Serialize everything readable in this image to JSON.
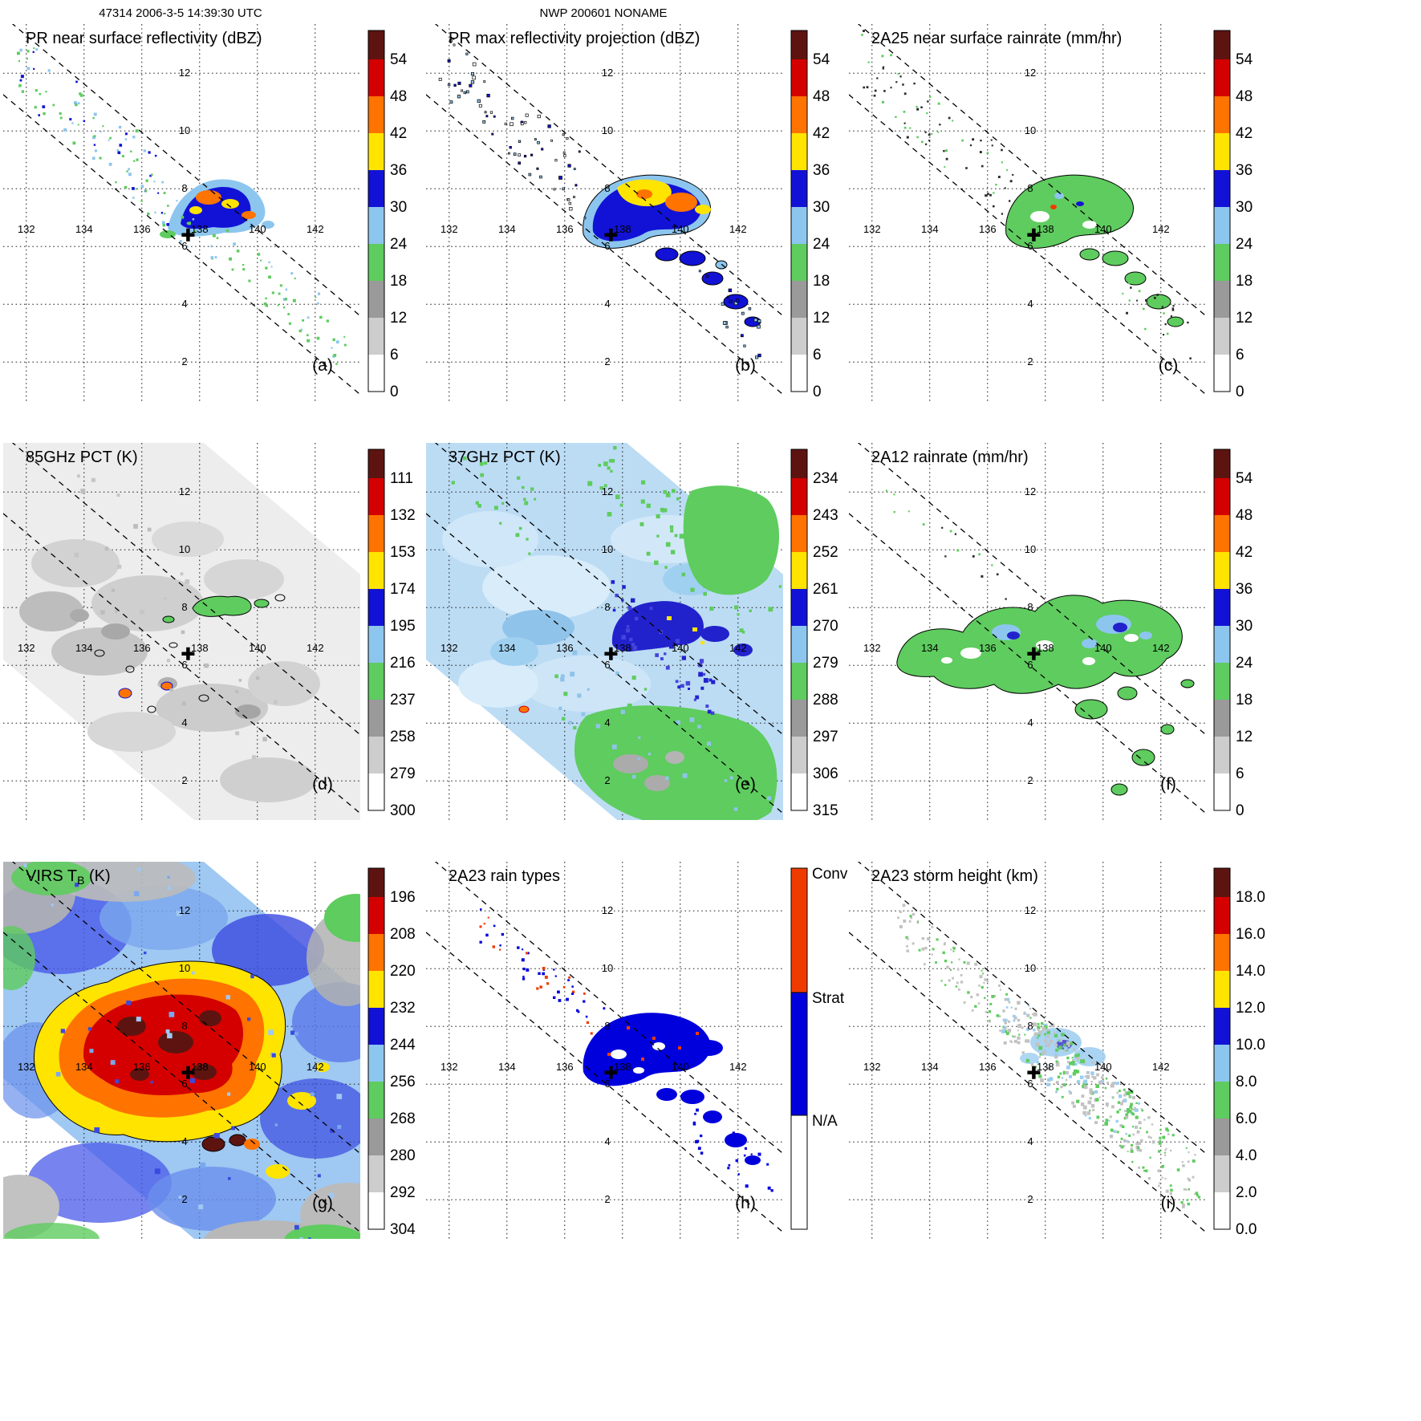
{
  "header": {
    "left": "47314 2006-3-5 14:39:30 UTC",
    "center": "NWP 200601 NONAME"
  },
  "palette": {
    "cap": "#5d1410",
    "segments": [
      "#d40000",
      "#ff7300",
      "#ffe400",
      "#1212d6",
      "#8cc6ee",
      "#5ecc5e",
      "#9a9a9a",
      "#cdcdcd",
      "#ffffff"
    ],
    "rain_types": {
      "conv": "#f03b00",
      "strat": "#0000dd",
      "na": "#ffffff"
    },
    "grid": "#000000",
    "marker": "#000000"
  },
  "geo": {
    "lon_ticks": [
      "132",
      "134",
      "136",
      "138",
      "140",
      "142"
    ],
    "lat_ticks": [
      "12",
      "10",
      "8",
      "6",
      "4",
      "2"
    ],
    "lon_range": [
      131.2,
      143.5
    ],
    "lat_range": [
      0.6,
      13.7
    ],
    "marker": {
      "lon": 137.6,
      "lat": 6.4
    },
    "swath_annotation": "PR swath edges shown as dashed diagonal lines"
  },
  "chart_data": [
    {
      "type": "heatmap",
      "panel": "(a)",
      "title": "PR near surface reflectivity (dBZ)",
      "variable": "PR near surface reflectivity",
      "units": "dBZ",
      "colorbar": {
        "ticks": [
          "54",
          "48",
          "42",
          "36",
          "30",
          "24",
          "18",
          "12",
          "6",
          "0"
        ]
      },
      "summary": "Scattered weak echoes northwest of swath center; convective cores 30-48 dBZ (blue/orange/yellow) near 138E 7N; light stratiform echoes trailing southeast to 142E 3N."
    },
    {
      "type": "heatmap",
      "panel": "(b)",
      "title": "PR max reflectivity projection (dBZ)",
      "variable": "PR max reflectivity projection",
      "units": "dBZ",
      "colorbar": {
        "ticks": [
          "54",
          "48",
          "42",
          "36",
          "30",
          "24",
          "18",
          "12",
          "6",
          "0"
        ]
      },
      "summary": "Broader 30-50 dBZ region near 137-141E 5.5-8.5N with yellow/orange cores; black-outlined blue cells chain southeast along the swath."
    },
    {
      "type": "heatmap",
      "panel": "(c)",
      "title": "2A25 near surface rainrate (mm/hr)",
      "variable": "2A25 near surface rainrate",
      "units": "mm/hr",
      "colorbar": {
        "ticks": [
          "54",
          "48",
          "42",
          "36",
          "30",
          "24",
          "18",
          "12",
          "6",
          "0"
        ]
      },
      "summary": "Mostly light rain 6-24 mm/hr (green, black contoured) near 137-141E 6-8N with embedded heavier blue/red pixels; speckled echoes northwest and southeast."
    },
    {
      "type": "heatmap",
      "panel": "(d)",
      "title": "85GHz PCT (K)",
      "variable": "85GHz polarization corrected temperature",
      "units": "K",
      "colorbar": {
        "ticks": [
          "111",
          "132",
          "153",
          "174",
          "195",
          "216",
          "237",
          "258",
          "279",
          "300"
        ]
      },
      "summary": "Mostly warm PCT 258-300 K (light gray) across wide TMI swath; scattered depressions 195-237 K (green, contoured) near 137-140E 7-7.5N and two deep cells near 134.5E and 136.8E, 4.5N."
    },
    {
      "type": "heatmap",
      "panel": "(e)",
      "title": "37GHz PCT (K)",
      "variable": "37GHz polarization corrected temperature",
      "units": "K",
      "colorbar": {
        "ticks": [
          "234",
          "243",
          "252",
          "261",
          "270",
          "279",
          "288",
          "297",
          "306",
          "315"
        ]
      },
      "summary": "Background PCT 270-279 K (pale blue) with depressions to 261-270 K (dark blue) and isolated 252-261 K (yellow) pixels near 138-141E 6-8N; 288-297 K green areas east and south, gray patches near 138E 2-3N."
    },
    {
      "type": "heatmap",
      "panel": "(f)",
      "title": "2A12 rainrate (mm/hr)",
      "variable": "2A12 rainrate",
      "units": "mm/hr",
      "colorbar": {
        "ticks": [
          "54",
          "48",
          "42",
          "36",
          "30",
          "24",
          "18",
          "12",
          "6",
          "0"
        ]
      },
      "summary": "Widespread light rain 6-18 mm/hr (green, black contoured) spanning 133-142.5E 4.5-8N with embedded 18-30 mm/hr light-blue/blue patches; detached cells trailing to 140E 2.5N."
    },
    {
      "type": "heatmap",
      "panel": "(g)",
      "title": "VIRS TB (K)",
      "title_parts": {
        "main": "VIRS T",
        "sub": "B",
        "rest": " (K)"
      },
      "variable": "VIRS infrared brightness temperature",
      "units": "K",
      "colorbar": {
        "ticks": [
          "196",
          "208",
          "220",
          "232",
          "244",
          "256",
          "268",
          "280",
          "292",
          "304"
        ]
      },
      "summary": "Large cold cloud shield 196-232 K (yellow/orange/red) centered 134-139E 5-8N with overshooting tops below 196 K (dark red); 232-256 K (blue) anvil cloud elsewhere and 268-304 K (green/gray) clear rims."
    },
    {
      "type": "heatmap",
      "panel": "(h)",
      "title": "2A23 rain types",
      "variable": "2A23 rain type classification",
      "units": "category",
      "colorbar": {
        "categories": [
          "Conv",
          "Strat",
          "N/A"
        ]
      },
      "summary": "Stratiform rain (blue) dominates 137-141E 5-8N trailing southeast; scattered convective pixels (red/orange) embedded and over the northwest speckle region."
    },
    {
      "type": "heatmap",
      "panel": "(i)",
      "title": "2A23 storm height (km)",
      "variable": "2A23 storm height",
      "units": "km",
      "colorbar": {
        "ticks": [
          "18.0",
          "16.0",
          "14.0",
          "12.0",
          "10.0",
          "8.0",
          "6.0",
          "4.0",
          "2.0",
          "0.0"
        ]
      },
      "summary": "Storm heights mostly 4.0-8.0 km (gray/green speckles) across the swath; 8.0-12.0 km (light blue/blue) region near 137-140E 6-8N."
    }
  ]
}
